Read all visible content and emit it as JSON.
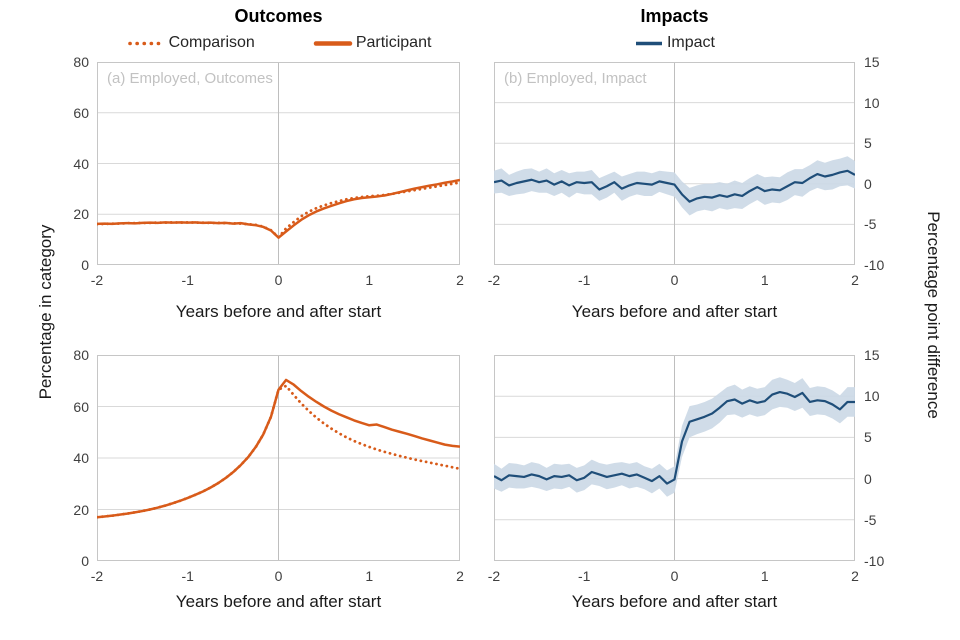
{
  "header": {
    "left_title": "Outcomes",
    "right_title": "Impacts"
  },
  "legend": {
    "comparison": "Comparison",
    "participant": "Participant",
    "impact": "Impact"
  },
  "axes": {
    "xlabel": "Years before and after start",
    "left_ylabel": "Percentage in category",
    "right_ylabel": "Percentage point difference"
  },
  "colors": {
    "orange": "#D85B1A",
    "navy": "#1F4E79",
    "band": "#CBD8E6",
    "gridline": "#D9D9D9",
    "panel_border": "#C6C6C6",
    "zero_line": "#BEBEBE",
    "tick_text": "#3f3f3f",
    "panel_label_text": "#C2C2C2"
  },
  "chart_data": [
    {
      "type": "line",
      "name": "employed-outcomes",
      "panel_label": "(a) Employed, Outcomes",
      "title": "Outcomes",
      "xlabel": "Years before and after start",
      "ylabel": "Percentage in category",
      "yaxis": "left",
      "xlim": [
        -2,
        2
      ],
      "ylim": [
        0,
        80
      ],
      "xticks": [
        -2,
        -1,
        0,
        1,
        2
      ],
      "yticks": [
        0,
        20,
        40,
        60,
        80
      ],
      "grid": true,
      "x": [
        -2,
        -1.917,
        -1.833,
        -1.75,
        -1.667,
        -1.583,
        -1.5,
        -1.417,
        -1.333,
        -1.25,
        -1.167,
        -1.083,
        -1,
        -0.917,
        -0.833,
        -0.75,
        -0.667,
        -0.583,
        -0.5,
        -0.417,
        -0.333,
        -0.25,
        -0.167,
        -0.083,
        0,
        0.083,
        0.167,
        0.25,
        0.333,
        0.417,
        0.5,
        0.583,
        0.667,
        0.75,
        0.833,
        0.917,
        1,
        1.083,
        1.167,
        1.25,
        1.333,
        1.417,
        1.5,
        1.583,
        1.667,
        1.75,
        1.833,
        1.917,
        2
      ],
      "series": [
        {
          "name": "Comparison",
          "color": "orange",
          "style": "dotted",
          "values": [
            16.1,
            16.2,
            16.3,
            16.3,
            16.5,
            16.5,
            16.6,
            16.6,
            16.7,
            16.7,
            16.8,
            16.7,
            16.8,
            16.7,
            16.7,
            16.6,
            16.6,
            16.5,
            16.4,
            16.3,
            16.1,
            15.8,
            15.1,
            13.7,
            10.9,
            14.4,
            16.9,
            19.2,
            21.0,
            22.4,
            23.5,
            24.4,
            25.2,
            25.9,
            26.4,
            26.8,
            27.1,
            27.3,
            27.6,
            28.0,
            28.5,
            29.0,
            29.5,
            30.0,
            30.5,
            31.0,
            31.5,
            32.0,
            32.5
          ]
        },
        {
          "name": "Participant",
          "color": "orange",
          "style": "solid",
          "values": [
            16.2,
            16.3,
            16.2,
            16.4,
            16.5,
            16.4,
            16.6,
            16.7,
            16.6,
            16.8,
            16.7,
            16.8,
            16.7,
            16.8,
            16.6,
            16.7,
            16.5,
            16.6,
            16.3,
            16.5,
            16.0,
            15.7,
            15.0,
            13.6,
            10.8,
            13.2,
            15.6,
            17.8,
            19.6,
            21.1,
            22.3,
            23.3,
            24.3,
            25.2,
            25.9,
            26.4,
            26.7,
            27.0,
            27.4,
            28.0,
            28.7,
            29.4,
            30.1,
            30.7,
            31.3,
            31.8,
            32.4,
            32.9,
            33.5
          ]
        }
      ]
    },
    {
      "type": "line",
      "name": "employed-impact",
      "panel_label": "(b) Employed, Impact",
      "title": "Impacts",
      "xlabel": "Years before and after start",
      "ylabel": "Percentage point difference",
      "yaxis": "right",
      "xlim": [
        -2,
        2
      ],
      "ylim": [
        -10,
        15
      ],
      "xticks": [
        -2,
        -1,
        0,
        1,
        2
      ],
      "yticks": [
        -10,
        -5,
        0,
        5,
        10,
        15
      ],
      "grid": true,
      "x": [
        -2,
        -1.917,
        -1.833,
        -1.75,
        -1.667,
        -1.583,
        -1.5,
        -1.417,
        -1.333,
        -1.25,
        -1.167,
        -1.083,
        -1,
        -0.917,
        -0.833,
        -0.75,
        -0.667,
        -0.583,
        -0.5,
        -0.417,
        -0.333,
        -0.25,
        -0.167,
        -0.083,
        0,
        0.083,
        0.167,
        0.25,
        0.333,
        0.417,
        0.5,
        0.583,
        0.667,
        0.75,
        0.833,
        0.917,
        1,
        1.083,
        1.167,
        1.25,
        1.333,
        1.417,
        1.5,
        1.583,
        1.667,
        1.75,
        1.833,
        1.917,
        2
      ],
      "series": [
        {
          "name": "Impact",
          "color": "navy",
          "style": "solid",
          "values": [
            0.2,
            0.4,
            -0.2,
            0.1,
            0.3,
            0.5,
            0.2,
            0.4,
            -0.1,
            0.3,
            -0.2,
            0.2,
            0.1,
            0.2,
            -0.7,
            -0.3,
            0.2,
            -0.6,
            -0.2,
            0.1,
            0.0,
            -0.1,
            0.3,
            0.1,
            -0.1,
            -1.3,
            -2.2,
            -1.8,
            -1.6,
            -1.7,
            -1.4,
            -1.6,
            -1.3,
            -1.5,
            -0.9,
            -0.4,
            -0.9,
            -0.7,
            -0.8,
            -0.3,
            0.2,
            0.1,
            0.7,
            1.2,
            0.9,
            1.1,
            1.4,
            1.6,
            1.1
          ]
        }
      ],
      "band": {
        "label": "confidence-interval",
        "halfwidth": [
          1.4,
          1.5,
          1.3,
          1.4,
          1.5,
          1.4,
          1.3,
          1.5,
          1.4,
          1.4,
          1.5,
          1.3,
          1.4,
          1.5,
          1.4,
          1.4,
          1.3,
          1.5,
          1.4,
          1.4,
          1.5,
          1.4,
          1.3,
          1.4,
          1.5,
          1.6,
          1.7,
          1.6,
          1.6,
          1.7,
          1.6,
          1.6,
          1.7,
          1.6,
          1.6,
          1.6,
          1.7,
          1.6,
          1.6,
          1.7,
          1.6,
          1.7,
          1.6,
          1.7,
          1.7,
          1.8,
          1.7,
          1.8,
          1.7
        ]
      }
    },
    {
      "type": "line",
      "name": "outcome2-outcomes",
      "panel_label": "",
      "title": "Outcomes",
      "xlabel": "Years before and after start",
      "ylabel": "Percentage in category",
      "yaxis": "left",
      "xlim": [
        -2,
        2
      ],
      "ylim": [
        0,
        80
      ],
      "xticks": [
        -2,
        -1,
        0,
        1,
        2
      ],
      "yticks": [
        0,
        20,
        40,
        60,
        80
      ],
      "grid": true,
      "x": [
        -2,
        -1.917,
        -1.833,
        -1.75,
        -1.667,
        -1.583,
        -1.5,
        -1.417,
        -1.333,
        -1.25,
        -1.167,
        -1.083,
        -1,
        -0.917,
        -0.833,
        -0.75,
        -0.667,
        -0.583,
        -0.5,
        -0.417,
        -0.333,
        -0.25,
        -0.167,
        -0.083,
        0,
        0.083,
        0.167,
        0.25,
        0.333,
        0.417,
        0.5,
        0.583,
        0.667,
        0.75,
        0.833,
        0.917,
        1,
        1.083,
        1.167,
        1.25,
        1.333,
        1.417,
        1.5,
        1.583,
        1.667,
        1.75,
        1.833,
        1.917,
        2
      ],
      "series": [
        {
          "name": "Comparison",
          "color": "orange",
          "style": "dotted",
          "values": [
            17.0,
            17.3,
            17.6,
            18.0,
            18.4,
            18.9,
            19.4,
            20.0,
            20.7,
            21.5,
            22.4,
            23.4,
            24.5,
            25.7,
            27.0,
            28.5,
            30.2,
            32.2,
            34.5,
            37.2,
            40.4,
            44.3,
            49.2,
            56.0,
            66.5,
            68.0,
            64.5,
            61.2,
            58.3,
            55.7,
            53.4,
            51.4,
            49.6,
            48.0,
            46.6,
            45.4,
            44.3,
            43.3,
            42.4,
            41.6,
            40.8,
            40.1,
            39.4,
            38.8,
            38.2,
            37.6,
            37.0,
            36.4,
            35.8
          ]
        },
        {
          "name": "Participant",
          "color": "orange",
          "style": "solid",
          "values": [
            17.0,
            17.3,
            17.6,
            18.0,
            18.4,
            18.9,
            19.4,
            20.0,
            20.7,
            21.5,
            22.4,
            23.4,
            24.5,
            25.7,
            27.0,
            28.5,
            30.2,
            32.2,
            34.5,
            37.2,
            40.4,
            44.3,
            49.2,
            56.0,
            66.5,
            70.3,
            68.5,
            66.0,
            63.8,
            61.8,
            60.0,
            58.4,
            57.0,
            55.8,
            54.6,
            53.6,
            52.7,
            53.0,
            52.0,
            51.0,
            50.2,
            49.4,
            48.5,
            47.6,
            46.8,
            46.0,
            45.2,
            44.7,
            44.4
          ]
        }
      ]
    },
    {
      "type": "line",
      "name": "outcome2-impact",
      "panel_label": "",
      "title": "Impacts",
      "xlabel": "Years before and after start",
      "ylabel": "Percentage point difference",
      "yaxis": "right",
      "xlim": [
        -2,
        2
      ],
      "ylim": [
        -10,
        15
      ],
      "xticks": [
        -2,
        -1,
        0,
        1,
        2
      ],
      "yticks": [
        -10,
        -5,
        0,
        5,
        10,
        15
      ],
      "grid": true,
      "x": [
        -2,
        -1.917,
        -1.833,
        -1.75,
        -1.667,
        -1.583,
        -1.5,
        -1.417,
        -1.333,
        -1.25,
        -1.167,
        -1.083,
        -1,
        -0.917,
        -0.833,
        -0.75,
        -0.667,
        -0.583,
        -0.5,
        -0.417,
        -0.333,
        -0.25,
        -0.167,
        -0.083,
        0,
        0.083,
        0.167,
        0.25,
        0.333,
        0.417,
        0.5,
        0.583,
        0.667,
        0.75,
        0.833,
        0.917,
        1,
        1.083,
        1.167,
        1.25,
        1.333,
        1.417,
        1.5,
        1.583,
        1.667,
        1.75,
        1.833,
        1.917,
        2
      ],
      "series": [
        {
          "name": "Impact",
          "color": "navy",
          "style": "solid",
          "values": [
            0.3,
            -0.2,
            0.4,
            0.3,
            0.2,
            0.5,
            0.3,
            -0.1,
            0.3,
            0.2,
            0.4,
            -0.2,
            0.1,
            0.8,
            0.5,
            0.2,
            0.4,
            0.6,
            0.3,
            0.5,
            0.1,
            -0.3,
            0.3,
            -0.6,
            -0.1,
            4.5,
            6.9,
            7.2,
            7.5,
            7.9,
            8.6,
            9.4,
            9.6,
            9.1,
            9.5,
            9.2,
            9.4,
            10.2,
            10.5,
            10.3,
            9.9,
            10.4,
            9.3,
            9.5,
            9.4,
            9.0,
            8.4,
            9.3,
            9.3
          ]
        }
      ],
      "band": {
        "label": "confidence-interval",
        "halfwidth": [
          1.5,
          1.4,
          1.5,
          1.5,
          1.4,
          1.5,
          1.5,
          1.4,
          1.5,
          1.5,
          1.4,
          1.5,
          1.5,
          1.5,
          1.4,
          1.5,
          1.5,
          1.4,
          1.5,
          1.5,
          1.4,
          1.5,
          1.5,
          1.6,
          1.6,
          1.9,
          1.9,
          1.8,
          1.8,
          1.8,
          1.8,
          1.7,
          1.8,
          1.7,
          1.7,
          1.7,
          1.7,
          1.8,
          1.8,
          1.7,
          1.7,
          1.8,
          1.7,
          1.7,
          1.7,
          1.7,
          1.7,
          1.8,
          1.8
        ]
      }
    }
  ]
}
